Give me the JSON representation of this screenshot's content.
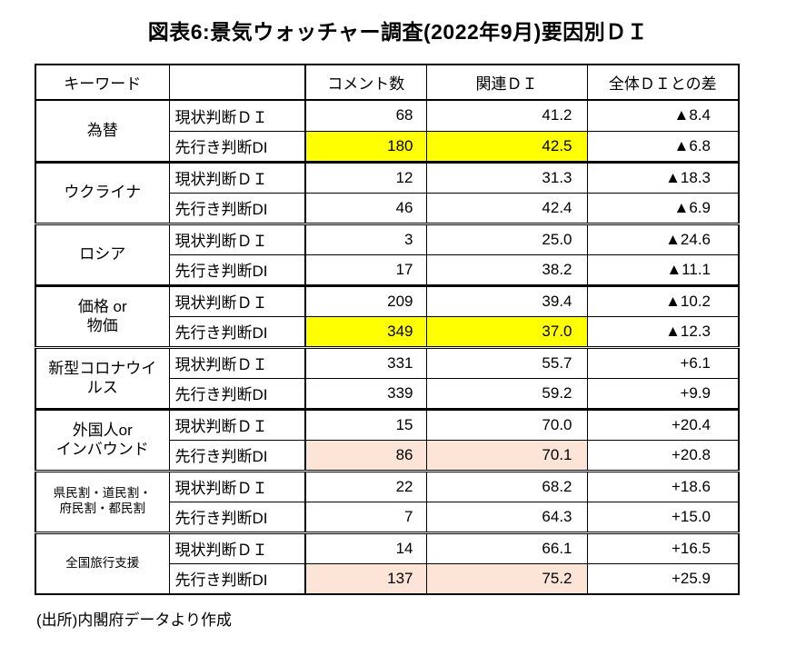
{
  "page": {
    "title": "図表6:景気ウォッチャー調査(2022年9月)要因別ＤＩ",
    "source_note": "(出所)内閣府データより作成"
  },
  "table": {
    "headers": {
      "keyword": "キーワード",
      "type": "",
      "comments": "コメント数",
      "related_di": "関連ＤＩ",
      "diff": "全体ＤＩとの差"
    },
    "highlight_colors": {
      "yellow": "#FFFF00",
      "peach": "#FCE4D6"
    },
    "groups": [
      {
        "keyword": "為替",
        "separator": "none",
        "small": false,
        "rows": [
          {
            "label": "現状判断ＤＩ",
            "comments": "68",
            "related_di": "41.2",
            "diff": "▲8.4",
            "highlight": null
          },
          {
            "label": "先行き判断DI",
            "comments": "180",
            "related_di": "42.5",
            "diff": "▲6.8",
            "highlight": "yellow"
          }
        ]
      },
      {
        "keyword": "ウクライナ",
        "separator": "solid",
        "small": false,
        "rows": [
          {
            "label": "現状判断ＤＩ",
            "comments": "12",
            "related_di": "31.3",
            "diff": "▲18.3",
            "highlight": null
          },
          {
            "label": "先行き判断DI",
            "comments": "46",
            "related_di": "42.4",
            "diff": "▲6.9",
            "highlight": null
          }
        ]
      },
      {
        "keyword": "ロシア",
        "separator": "double",
        "small": false,
        "rows": [
          {
            "label": "現状判断ＤＩ",
            "comments": "3",
            "related_di": "25.0",
            "diff": "▲24.6",
            "highlight": null
          },
          {
            "label": "先行き判断DI",
            "comments": "17",
            "related_di": "38.2",
            "diff": "▲11.1",
            "highlight": null
          }
        ]
      },
      {
        "keyword": "価格 or\n物価",
        "separator": "solid",
        "small": false,
        "rows": [
          {
            "label": "現状判断ＤＩ",
            "comments": "209",
            "related_di": "39.4",
            "diff": "▲10.2",
            "highlight": null
          },
          {
            "label": "先行き判断DI",
            "comments": "349",
            "related_di": "37.0",
            "diff": "▲12.3",
            "highlight": "yellow"
          }
        ]
      },
      {
        "keyword": "新型コロナウイ\nルス",
        "separator": "double",
        "small": false,
        "rows": [
          {
            "label": "現状判断ＤＩ",
            "comments": "331",
            "related_di": "55.7",
            "diff": "+6.1",
            "highlight": null
          },
          {
            "label": "先行き判断DI",
            "comments": "339",
            "related_di": "59.2",
            "diff": "+9.9",
            "highlight": null
          }
        ]
      },
      {
        "keyword": "外国人or\nインバウンド",
        "separator": "solid",
        "small": false,
        "rows": [
          {
            "label": "現状判断ＤＩ",
            "comments": "15",
            "related_di": "70.0",
            "diff": "+20.4",
            "highlight": null
          },
          {
            "label": "先行き判断DI",
            "comments": "86",
            "related_di": "70.1",
            "diff": "+20.8",
            "highlight": "peach"
          }
        ]
      },
      {
        "keyword": "県民割・道民割・\n府民割・都民割",
        "separator": "double",
        "small": true,
        "rows": [
          {
            "label": "現状判断ＤＩ",
            "comments": "22",
            "related_di": "68.2",
            "diff": "+18.6",
            "highlight": null
          },
          {
            "label": "先行き判断DI",
            "comments": "7",
            "related_di": "64.3",
            "diff": "+15.0",
            "highlight": null
          }
        ]
      },
      {
        "keyword": "全国旅行支援",
        "separator": "double",
        "small": true,
        "rows": [
          {
            "label": "現状判断ＤＩ",
            "comments": "14",
            "related_di": "66.1",
            "diff": "+16.5",
            "highlight": null
          },
          {
            "label": "先行き判断DI",
            "comments": "137",
            "related_di": "75.2",
            "diff": "+25.9",
            "highlight": "peach"
          }
        ]
      }
    ]
  }
}
